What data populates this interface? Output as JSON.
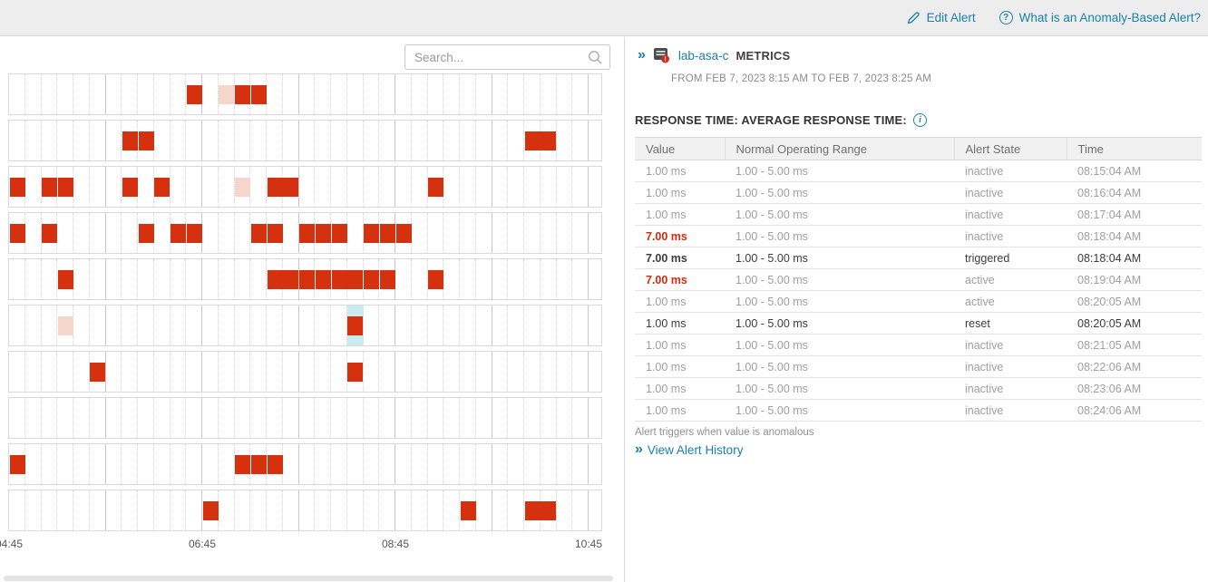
{
  "topbar": {
    "edit_alert_label": "Edit Alert",
    "help_label": "What is an Anomaly-Based Alert?"
  },
  "left_panel": {
    "search_placeholder": "Search..."
  },
  "details": {
    "node_name": "lab-asa-c",
    "metrics_label": "METRICS",
    "date_range": "FROM FEB 7, 2023 8:15 AM TO FEB 7, 2023 8:25 AM",
    "metric_title": "RESPONSE TIME: AVERAGE RESPONSE TIME:",
    "table": {
      "columns": [
        "Value",
        "Normal Operating Range",
        "Alert State",
        "Time"
      ],
      "rows": [
        {
          "value": "1.00 ms",
          "range": "1.00 - 5.00 ms",
          "state": "inactive",
          "time": "08:15:04 AM",
          "value_red": false,
          "emphasis": false
        },
        {
          "value": "1.00 ms",
          "range": "1.00 - 5.00 ms",
          "state": "inactive",
          "time": "08:16:04 AM",
          "value_red": false,
          "emphasis": false
        },
        {
          "value": "1.00 ms",
          "range": "1.00 - 5.00 ms",
          "state": "inactive",
          "time": "08:17:04 AM",
          "value_red": false,
          "emphasis": false
        },
        {
          "value": "7.00 ms",
          "range": "1.00 - 5.00 ms",
          "state": "inactive",
          "time": "08:18:04 AM",
          "value_red": true,
          "emphasis": false
        },
        {
          "value": "7.00 ms",
          "range": "1.00 - 5.00 ms",
          "state": "triggered",
          "time": "08:18:04 AM",
          "value_red": true,
          "emphasis": true
        },
        {
          "value": "7.00 ms",
          "range": "1.00 - 5.00 ms",
          "state": "active",
          "time": "08:19:04 AM",
          "value_red": true,
          "emphasis": false
        },
        {
          "value": "1.00 ms",
          "range": "1.00 - 5.00 ms",
          "state": "active",
          "time": "08:20:05 AM",
          "value_red": false,
          "emphasis": false
        },
        {
          "value": "1.00 ms",
          "range": "1.00 - 5.00 ms",
          "state": "reset",
          "time": "08:20:05 AM",
          "value_red": false,
          "emphasis": true
        },
        {
          "value": "1.00 ms",
          "range": "1.00 - 5.00 ms",
          "state": "inactive",
          "time": "08:21:05 AM",
          "value_red": false,
          "emphasis": false
        },
        {
          "value": "1.00 ms",
          "range": "1.00 - 5.00 ms",
          "state": "inactive",
          "time": "08:22:06 AM",
          "value_red": false,
          "emphasis": false
        },
        {
          "value": "1.00 ms",
          "range": "1.00 - 5.00 ms",
          "state": "inactive",
          "time": "08:23:06 AM",
          "value_red": false,
          "emphasis": false
        },
        {
          "value": "1.00 ms",
          "range": "1.00 - 5.00 ms",
          "state": "inactive",
          "time": "08:24:06 AM",
          "value_red": false,
          "emphasis": false
        }
      ]
    },
    "footnote": "Alert triggers when value is anomalous",
    "history_link_label": "View Alert History"
  },
  "chart_data": {
    "type": "heatmap",
    "description": "Anomaly timeline: one lane per metric, one cell per 10-minute bucket",
    "x_tick_labels": [
      "04:45",
      "06:45",
      "08:45",
      "10:45"
    ],
    "x_tick_cells": [
      0,
      12,
      24,
      36
    ],
    "cells_per_lane": 37,
    "minutes_per_cell": 10,
    "major_gridline_every_cells": 6,
    "mark_types": {
      "a": "anomaly",
      "f": "faded-anomaly",
      "s": "selected-anomaly"
    },
    "lanes": [
      {
        "marks": [
          {
            "c": 11,
            "t": "a"
          },
          {
            "c": 13,
            "t": "f"
          },
          {
            "c": 14,
            "t": "a"
          },
          {
            "c": 15,
            "t": "a"
          }
        ]
      },
      {
        "marks": [
          {
            "c": 7,
            "t": "a"
          },
          {
            "c": 8,
            "t": "a"
          },
          {
            "c": 32,
            "t": "a"
          },
          {
            "c": 33,
            "t": "a"
          }
        ]
      },
      {
        "marks": [
          {
            "c": 0,
            "t": "a"
          },
          {
            "c": 2,
            "t": "a"
          },
          {
            "c": 3,
            "t": "a"
          },
          {
            "c": 7,
            "t": "a"
          },
          {
            "c": 9,
            "t": "a"
          },
          {
            "c": 14,
            "t": "f"
          },
          {
            "c": 16,
            "t": "a"
          },
          {
            "c": 17,
            "t": "a"
          },
          {
            "c": 26,
            "t": "a"
          }
        ]
      },
      {
        "marks": [
          {
            "c": 0,
            "t": "a"
          },
          {
            "c": 2,
            "t": "a"
          },
          {
            "c": 8,
            "t": "a"
          },
          {
            "c": 10,
            "t": "a"
          },
          {
            "c": 11,
            "t": "a"
          },
          {
            "c": 15,
            "t": "a"
          },
          {
            "c": 16,
            "t": "a"
          },
          {
            "c": 18,
            "t": "a"
          },
          {
            "c": 19,
            "t": "a"
          },
          {
            "c": 20,
            "t": "a"
          },
          {
            "c": 22,
            "t": "a"
          },
          {
            "c": 23,
            "t": "a"
          },
          {
            "c": 24,
            "t": "a"
          }
        ]
      },
      {
        "marks": [
          {
            "c": 3,
            "t": "a"
          },
          {
            "c": 16,
            "t": "a"
          },
          {
            "c": 17,
            "t": "a"
          },
          {
            "c": 18,
            "t": "a"
          },
          {
            "c": 19,
            "t": "a"
          },
          {
            "c": 20,
            "t": "a"
          },
          {
            "c": 21,
            "t": "a"
          },
          {
            "c": 22,
            "t": "a"
          },
          {
            "c": 23,
            "t": "a"
          },
          {
            "c": 26,
            "t": "a"
          }
        ]
      },
      {
        "marks": [
          {
            "c": 3,
            "t": "f"
          },
          {
            "c": 21,
            "t": "s"
          }
        ]
      },
      {
        "marks": [
          {
            "c": 5,
            "t": "a"
          },
          {
            "c": 21,
            "t": "a"
          }
        ]
      },
      {
        "marks": []
      },
      {
        "marks": [
          {
            "c": 0,
            "t": "a"
          },
          {
            "c": 14,
            "t": "a"
          },
          {
            "c": 15,
            "t": "a"
          },
          {
            "c": 16,
            "t": "a"
          }
        ]
      },
      {
        "marks": [
          {
            "c": 12,
            "t": "a"
          },
          {
            "c": 28,
            "t": "a"
          },
          {
            "c": 32,
            "t": "a"
          },
          {
            "c": 33,
            "t": "a"
          }
        ]
      }
    ],
    "colors": {
      "anomaly": "#d5310e",
      "faded_anomaly": "#f6d5cc",
      "selected_bg": "#c8ecf2",
      "alert_text_red": "#d42a10",
      "accent_link": "#1b80aa"
    }
  }
}
